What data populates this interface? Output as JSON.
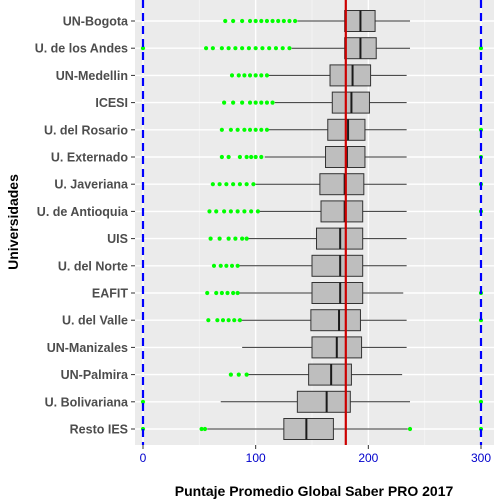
{
  "chart_data": {
    "type": "boxplot",
    "orientation": "horizontal",
    "xlabel": "Puntaje Promedio Global Saber PRO 2017",
    "ylabel": "Universidades",
    "xlim": [
      -5,
      308
    ],
    "x_ticks": [
      0,
      100,
      200,
      300
    ],
    "grid": true,
    "reference_lines": {
      "dashed_vertical": [
        0,
        300
      ],
      "dashed_color": "#0000ff",
      "solid_vertical": 180,
      "solid_color": "#cc0000"
    },
    "box_fill": "#bebebe",
    "outlier_color": "#00ff00",
    "categories": [
      "UN-Bogota",
      "U. de los Andes",
      "UN-Medellin",
      "ICESI",
      "U. del Rosario",
      "U. Externado",
      "U. Javeriana",
      "U. de Antioquia",
      "UIS",
      "U. del Norte",
      "EAFIT",
      "U. del Valle",
      "UN-Manizales",
      "UN-Palmira",
      "U. Bolivariana",
      "Resto IES"
    ],
    "boxes": [
      {
        "name": "UN-Bogota",
        "whisker_low": 137,
        "q1": 179,
        "median": 193,
        "q3": 206,
        "whisker_high": 237,
        "outliers": [
          73,
          80,
          88,
          95,
          100,
          105,
          110,
          115,
          120,
          125,
          130,
          135
        ]
      },
      {
        "name": "U. de los Andes",
        "whisker_low": 132,
        "q1": 179,
        "median": 193,
        "q3": 207,
        "whisker_high": 237,
        "outliers": [
          0,
          56,
          62,
          70,
          76,
          82,
          88,
          94,
          100,
          106,
          112,
          118,
          124,
          130,
          300
        ]
      },
      {
        "name": "UN-Medellin",
        "whisker_low": 111,
        "q1": 166,
        "median": 186,
        "q3": 202,
        "whisker_high": 234,
        "outliers": [
          79,
          85,
          90,
          95,
          100,
          105,
          110
        ]
      },
      {
        "name": "ICESI",
        "whisker_low": 117,
        "q1": 168,
        "median": 185,
        "q3": 201,
        "whisker_high": 234,
        "outliers": [
          72,
          80,
          88,
          95,
          100,
          105,
          110,
          115
        ]
      },
      {
        "name": "U. del Rosario",
        "whisker_low": 110,
        "q1": 164,
        "median": 182,
        "q3": 197,
        "whisker_high": 234,
        "outliers": [
          70,
          78,
          84,
          90,
          95,
          100,
          105,
          110,
          300
        ]
      },
      {
        "name": "U. Externado",
        "whisker_low": 108,
        "q1": 162,
        "median": 181,
        "q3": 197,
        "whisker_high": 234,
        "outliers": [
          70,
          76,
          86,
          92,
          96,
          100,
          105,
          300
        ]
      },
      {
        "name": "U. Javeriana",
        "whisker_low": 100,
        "q1": 157,
        "median": 179,
        "q3": 196,
        "whisker_high": 234,
        "outliers": [
          62,
          68,
          74,
          80,
          86,
          92,
          98,
          300
        ]
      },
      {
        "name": "U. de Antioquia",
        "whisker_low": 102,
        "q1": 158,
        "median": 179,
        "q3": 195,
        "whisker_high": 234,
        "outliers": [
          59,
          65,
          72,
          78,
          84,
          90,
          96,
          102,
          300
        ]
      },
      {
        "name": "UIS",
        "whisker_low": 92,
        "q1": 154,
        "median": 175,
        "q3": 195,
        "whisker_high": 234,
        "outliers": [
          60,
          68,
          76,
          82,
          88,
          92
        ]
      },
      {
        "name": "U. del Norte",
        "whisker_low": 84,
        "q1": 150,
        "median": 175,
        "q3": 195,
        "whisker_high": 234,
        "outliers": [
          63,
          69,
          74,
          79,
          84
        ]
      },
      {
        "name": "EAFIT",
        "whisker_low": 84,
        "q1": 150,
        "median": 175,
        "q3": 195,
        "whisker_high": 231,
        "outliers": [
          57,
          65,
          70,
          75,
          80,
          84,
          300
        ]
      },
      {
        "name": "U. del Valle",
        "whisker_low": 84,
        "q1": 149,
        "median": 174,
        "q3": 193,
        "whisker_high": 234,
        "outliers": [
          58,
          66,
          71,
          76,
          81,
          86,
          300
        ]
      },
      {
        "name": "UN-Manizales",
        "whisker_low": 88,
        "q1": 150,
        "median": 172,
        "q3": 194,
        "whisker_high": 234,
        "outliers": []
      },
      {
        "name": "UN-Palmira",
        "whisker_low": 92,
        "q1": 147,
        "median": 167,
        "q3": 185,
        "whisker_high": 230,
        "outliers": [
          78,
          85,
          92
        ]
      },
      {
        "name": "U. Bolivariana",
        "whisker_low": 69,
        "q1": 137,
        "median": 163,
        "q3": 184,
        "whisker_high": 237,
        "outliers": [
          0,
          300
        ]
      },
      {
        "name": "Resto IES",
        "whisker_low": 57,
        "q1": 125,
        "median": 145,
        "q3": 169,
        "whisker_high": 235,
        "outliers": [
          0,
          52,
          55,
          237,
          300
        ]
      }
    ]
  }
}
